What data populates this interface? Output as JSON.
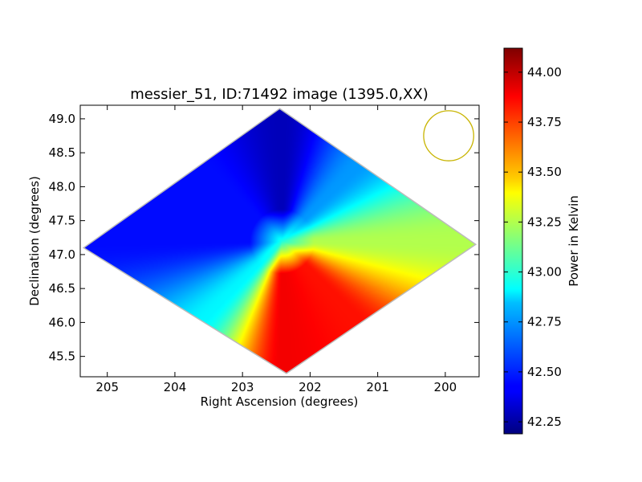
{
  "chart_data": {
    "type": "heatmap",
    "title": "messier_51, ID:71492 image (1395.0,XX)",
    "xlabel": "Right Ascension (degrees)",
    "ylabel": "Declination (degrees)",
    "xlim": [
      205.4,
      199.5
    ],
    "ylim": [
      45.2,
      49.2
    ],
    "x_ticks": [
      205,
      204,
      203,
      202,
      201,
      200
    ],
    "x_tick_labels": [
      "205",
      "204",
      "203",
      "202",
      "201",
      "200"
    ],
    "y_ticks": [
      45.5,
      46.0,
      46.5,
      47.0,
      47.5,
      48.0,
      48.5,
      49.0
    ],
    "y_tick_labels": [
      "45.5",
      "46.0",
      "46.5",
      "47.0",
      "47.5",
      "48.0",
      "48.5",
      "49.0"
    ],
    "colorbar": {
      "label": "Power in Kelvin",
      "range": [
        42.19,
        44.12
      ],
      "ticks": [
        42.25,
        42.5,
        42.75,
        43.0,
        43.25,
        43.5,
        43.75,
        44.0
      ],
      "tick_labels": [
        "42.25",
        "42.50",
        "42.75",
        "43.00",
        "43.25",
        "43.50",
        "43.75",
        "44.00"
      ],
      "colormap": "jet"
    },
    "map": {
      "shape": "diamond",
      "vertices_data": [
        [
          202.45,
          49.15
        ],
        [
          205.35,
          47.1
        ],
        [
          202.35,
          45.25
        ],
        [
          199.55,
          47.15
        ]
      ],
      "center": [
        202.42,
        47.2
      ],
      "north_value": 42.3,
      "west_value": 42.45,
      "east_value": 43.25,
      "south_value": 43.9,
      "corner_values": {
        "top_right_edge": 42.72,
        "top_left_edge": 42.45,
        "bottom_left_edge": 42.9,
        "bottom_right_edge": 43.85
      }
    },
    "beam_circle": {
      "center": [
        199.95,
        48.75
      ],
      "radius_deg": 0.37,
      "color": "#c8b400"
    },
    "grid": false
  }
}
